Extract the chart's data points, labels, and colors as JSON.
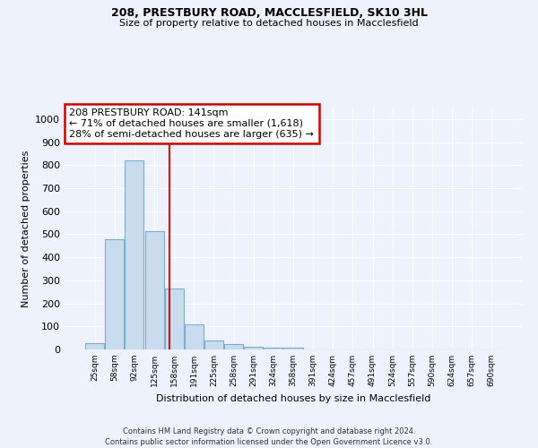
{
  "title": "208, PRESTBURY ROAD, MACCLESFIELD, SK10 3HL",
  "subtitle": "Size of property relative to detached houses in Macclesfield",
  "xlabel": "Distribution of detached houses by size in Macclesfield",
  "ylabel": "Number of detached properties",
  "bar_labels": [
    "25sqm",
    "58sqm",
    "92sqm",
    "125sqm",
    "158sqm",
    "191sqm",
    "225sqm",
    "258sqm",
    "291sqm",
    "324sqm",
    "358sqm",
    "391sqm",
    "424sqm",
    "457sqm",
    "491sqm",
    "524sqm",
    "557sqm",
    "590sqm",
    "624sqm",
    "657sqm",
    "690sqm"
  ],
  "bar_values": [
    28,
    478,
    820,
    515,
    265,
    110,
    38,
    22,
    12,
    8,
    8,
    0,
    0,
    0,
    0,
    0,
    0,
    0,
    0,
    0,
    0
  ],
  "bar_color": "#c8dcee",
  "bar_edge_color": "#7aaece",
  "annotation_text_line1": "208 PRESTBURY ROAD: 141sqm",
  "annotation_text_line2": "← 71% of detached houses are smaller (1,618)",
  "annotation_text_line3": "28% of semi-detached houses are larger (635) →",
  "annotation_box_color": "#ffffff",
  "annotation_box_edge": "#cc0000",
  "vline_color": "#cc0000",
  "ylim": [
    0,
    1050
  ],
  "yticks": [
    0,
    100,
    200,
    300,
    400,
    500,
    600,
    700,
    800,
    900,
    1000
  ],
  "background_color": "#eef2fc",
  "grid_color": "#ffffff",
  "footer_line1": "Contains HM Land Registry data © Crown copyright and database right 2024.",
  "footer_line2": "Contains public sector information licensed under the Open Government Licence v3.0."
}
